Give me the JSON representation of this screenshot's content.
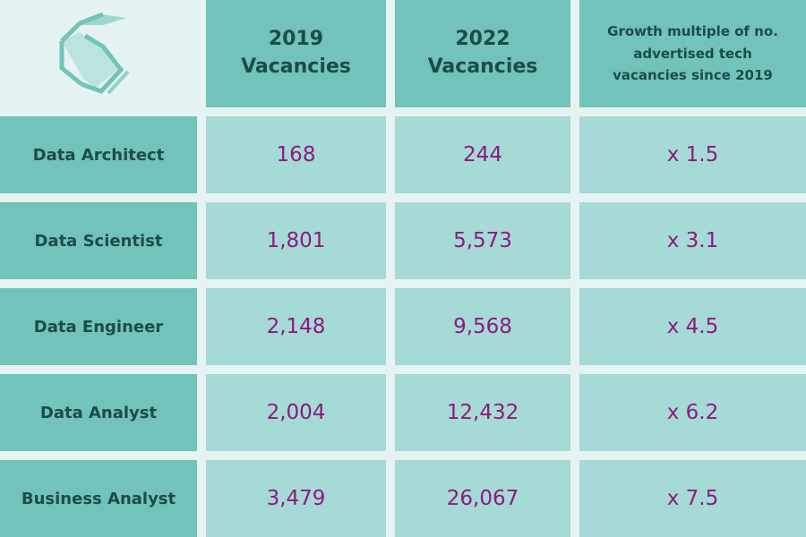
{
  "chart_data": {
    "type": "table",
    "columns": [
      "2019 Vacancies",
      "2022 Vacancies",
      "Growth multiple of no. advertised tech vacancies since 2019"
    ],
    "rows": [
      {
        "label": "Data Architect",
        "v2019": "168",
        "v2022": "244",
        "growth": "x 1.5"
      },
      {
        "label": "Data Scientist",
        "v2019": "1,801",
        "v2022": "5,573",
        "growth": "x 3.1"
      },
      {
        "label": "Data Engineer",
        "v2019": "2,148",
        "v2022": "9,568",
        "growth": "x 4.5"
      },
      {
        "label": "Data Analyst",
        "v2019": "2,004",
        "v2022": "12,432",
        "growth": "x 6.2"
      },
      {
        "label": "Business Analyst",
        "v2019": "3,479",
        "v2022": "26,067",
        "growth": "x 7.5"
      }
    ]
  },
  "header": {
    "col2019": [
      "2019",
      "Vacancies"
    ],
    "col2022": [
      "2022",
      "Vacancies"
    ],
    "growth": [
      "Growth multiple of no.",
      "advertised tech",
      "vacancies since 2019"
    ]
  },
  "logo": {
    "icon": "s-logo-icon"
  },
  "colors": {
    "background": "#e6f3f3",
    "header": "#72c3b9",
    "value_cell": "#a6dad6",
    "label_text": "#1c4c47",
    "value_text": "#8c1a82"
  }
}
